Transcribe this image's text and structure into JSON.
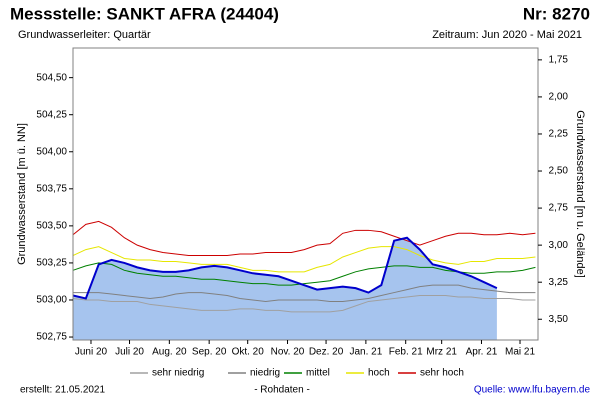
{
  "chart_data": {
    "type": "line",
    "title": "Messstelle: SANKT AFRA (24404)",
    "number": "Nr: 8270",
    "subtitle": "Grundwasserleiter: Quartär",
    "period": "Zeitraum: Jun 2020 - Mai 2021",
    "ylabel": "Grundwasserstand [m ü. NN]",
    "y2label": "Grundwasserstand [m u. Gelände]",
    "created": "erstellt:  21.05.2021",
    "source": "Quelle: www.lfu.bayern.de",
    "grid": false,
    "xlim": [
      -14,
      348
    ],
    "xticks": [
      {
        "value": 0,
        "label": "Juni 20"
      },
      {
        "value": 30,
        "label": "Juli 20"
      },
      {
        "value": 61,
        "label": "Aug. 20"
      },
      {
        "value": 92,
        "label": "Sep. 20"
      },
      {
        "value": 122,
        "label": "Okt. 20"
      },
      {
        "value": 153,
        "label": "Nov. 20"
      },
      {
        "value": 183,
        "label": "Dez. 20"
      },
      {
        "value": 214,
        "label": "Jan. 21"
      },
      {
        "value": 245,
        "label": "Feb. 21"
      },
      {
        "value": 273,
        "label": "Mrz 21"
      },
      {
        "value": 304,
        "label": "Apr. 21"
      },
      {
        "value": 334,
        "label": "Mai 21"
      }
    ],
    "ylim": [
      502.73,
      504.7
    ],
    "yticks": [
      {
        "value": 502.75,
        "label": "502,75"
      },
      {
        "value": 503.0,
        "label": "503,00"
      },
      {
        "value": 503.25,
        "label": "503,25"
      },
      {
        "value": 503.5,
        "label": "503,50"
      },
      {
        "value": 503.75,
        "label": "503,75"
      },
      {
        "value": 504.0,
        "label": "504,00"
      },
      {
        "value": 504.25,
        "label": "504,25"
      },
      {
        "value": 504.5,
        "label": "504,50"
      }
    ],
    "y2lim": [
      3.64,
      1.67
    ],
    "y2ticks": [
      {
        "value": 1.75,
        "label": "1,75"
      },
      {
        "value": 2.0,
        "label": "2,00"
      },
      {
        "value": 2.25,
        "label": "2,25"
      },
      {
        "value": 2.5,
        "label": "2,50"
      },
      {
        "value": 2.75,
        "label": "2,75"
      },
      {
        "value": 3.0,
        "label": "3,00"
      },
      {
        "value": 3.25,
        "label": "3,25"
      },
      {
        "value": 3.5,
        "label": "3,50"
      }
    ],
    "x": [
      -14,
      -4,
      6,
      16,
      26,
      36,
      46,
      56,
      66,
      76,
      86,
      96,
      106,
      116,
      126,
      136,
      146,
      156,
      166,
      176,
      186,
      196,
      206,
      216,
      226,
      236,
      246,
      256,
      266,
      276,
      286,
      296,
      306,
      316,
      326,
      336,
      346
    ],
    "series": [
      {
        "name": "sehr niedrig",
        "color": "#a0a0a0",
        "values": [
          503.01,
          503.0,
          503.0,
          502.99,
          502.99,
          502.99,
          502.97,
          502.96,
          502.95,
          502.94,
          502.93,
          502.93,
          502.93,
          502.94,
          502.94,
          502.93,
          502.93,
          502.92,
          502.92,
          502.92,
          502.92,
          502.93,
          502.96,
          502.99,
          503.0,
          503.01,
          503.02,
          503.03,
          503.03,
          503.03,
          503.02,
          503.02,
          503.01,
          503.01,
          503.01,
          503.0,
          503.0
        ]
      },
      {
        "name": "niedrig",
        "color": "#808080",
        "values": [
          503.05,
          503.05,
          503.05,
          503.04,
          503.03,
          503.02,
          503.01,
          503.02,
          503.04,
          503.05,
          503.05,
          503.04,
          503.03,
          503.01,
          503.0,
          502.99,
          503.0,
          503.0,
          503.0,
          503.0,
          502.99,
          502.99,
          503.0,
          503.01,
          503.03,
          503.05,
          503.07,
          503.09,
          503.1,
          503.1,
          503.1,
          503.08,
          503.07,
          503.06,
          503.05,
          503.05,
          503.05
        ]
      },
      {
        "name": "mittel",
        "color": "#008000",
        "values": [
          503.2,
          503.23,
          503.25,
          503.24,
          503.2,
          503.18,
          503.17,
          503.16,
          503.16,
          503.15,
          503.14,
          503.14,
          503.13,
          503.12,
          503.11,
          503.11,
          503.1,
          503.1,
          503.11,
          503.12,
          503.13,
          503.16,
          503.19,
          503.21,
          503.22,
          503.23,
          503.23,
          503.22,
          503.22,
          503.2,
          503.19,
          503.18,
          503.18,
          503.19,
          503.19,
          503.2,
          503.22
        ]
      },
      {
        "name": "hoch",
        "color": "#e6e600",
        "values": [
          503.3,
          503.34,
          503.36,
          503.32,
          503.28,
          503.27,
          503.27,
          503.26,
          503.26,
          503.25,
          503.24,
          503.24,
          503.24,
          503.22,
          503.2,
          503.2,
          503.19,
          503.19,
          503.19,
          503.22,
          503.24,
          503.29,
          503.32,
          503.35,
          503.36,
          503.36,
          503.34,
          503.3,
          503.27,
          503.25,
          503.24,
          503.26,
          503.26,
          503.28,
          503.28,
          503.28,
          503.29
        ]
      },
      {
        "name": "sehr hoch",
        "color": "#cc0000",
        "values": [
          503.44,
          503.51,
          503.53,
          503.49,
          503.42,
          503.37,
          503.34,
          503.32,
          503.31,
          503.3,
          503.3,
          503.3,
          503.3,
          503.31,
          503.31,
          503.32,
          503.32,
          503.32,
          503.34,
          503.37,
          503.38,
          503.45,
          503.47,
          503.47,
          503.46,
          503.43,
          503.4,
          503.37,
          503.4,
          503.43,
          503.45,
          503.45,
          503.44,
          503.44,
          503.45,
          503.44,
          503.45
        ]
      },
      {
        "name": "- Rohdaten -",
        "color": "#0000cc",
        "fill": "#a6c4ee",
        "values": [
          503.03,
          503.01,
          503.24,
          503.27,
          503.25,
          503.22,
          503.2,
          503.19,
          503.19,
          503.2,
          503.22,
          503.23,
          503.22,
          503.2,
          503.18,
          503.17,
          503.16,
          503.13,
          503.1,
          503.07,
          503.08,
          503.09,
          503.08,
          503.05,
          503.1,
          503.4,
          503.42,
          503.34,
          503.24,
          503.22,
          503.19,
          503.16,
          503.12,
          503.08,
          null,
          null,
          null
        ]
      }
    ]
  }
}
